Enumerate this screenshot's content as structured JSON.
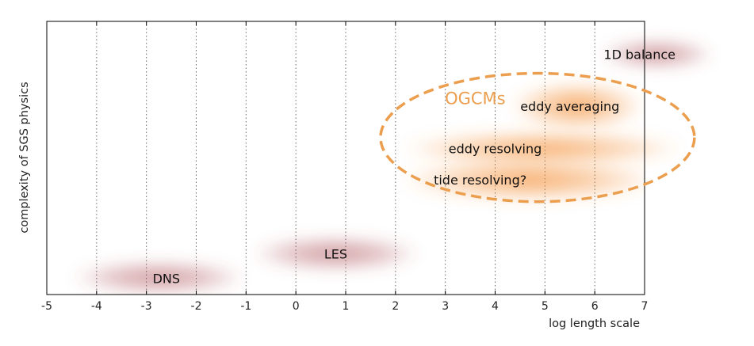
{
  "chart_data": {
    "type": "scatter",
    "title": "",
    "xlabel": "log length scale",
    "ylabel": "complexity of SGS physics",
    "xlim": [
      -5,
      7
    ],
    "ylim": [
      0,
      10
    ],
    "xticks": [
      -5,
      -4,
      -3,
      -2,
      -1,
      0,
      1,
      2,
      3,
      4,
      5,
      6,
      7
    ],
    "grid": "vertical dotted",
    "colors": {
      "red_region": "#a8474f",
      "orange_region": "#f4913a",
      "group_outline": "#eb9e4e",
      "axis": "#000000",
      "grid": "#666666"
    },
    "regions": [
      {
        "label": "DNS",
        "color_key": "red_region",
        "x": -2.6,
        "y": 0.6,
        "x_extent": [
          -4.5,
          -1.0
        ],
        "y_extent": [
          0.0,
          1.25
        ]
      },
      {
        "label": "LES",
        "color_key": "red_region",
        "x": 0.8,
        "y": 1.5,
        "x_extent": [
          -0.9,
          2.5
        ],
        "y_extent": [
          0.85,
          2.15
        ]
      },
      {
        "label": "1D balance",
        "color_key": "red_region",
        "x": 6.9,
        "y": 8.8,
        "x_extent": [
          6.1,
          8.4
        ],
        "y_extent": [
          8.25,
          9.35
        ]
      },
      {
        "label": "eddy averaging",
        "color_key": "orange_region",
        "x": 5.5,
        "y": 6.9,
        "x_extent": [
          4.3,
          7.0
        ],
        "y_extent": [
          6.0,
          7.8
        ]
      },
      {
        "label": "eddy resolving",
        "color_key": "orange_region",
        "x": 4.0,
        "y": 5.35,
        "x_extent": [
          2.1,
          7.8
        ],
        "y_extent": [
          4.7,
          6.0
        ]
      },
      {
        "label": "tide resolving?",
        "color_key": "orange_region",
        "x": 3.7,
        "y": 4.2,
        "x_extent": [
          2.1,
          7.3
        ],
        "y_extent": [
          3.4,
          5.0
        ]
      }
    ],
    "groups": [
      {
        "label": "OGCMs",
        "color_key": "group_outline",
        "label_x": 3.6,
        "label_y": 7.2,
        "center_x": 4.85,
        "center_y": 5.75,
        "x_extent": [
          1.7,
          8.0
        ],
        "y_extent": [
          3.4,
          8.1
        ]
      }
    ]
  }
}
